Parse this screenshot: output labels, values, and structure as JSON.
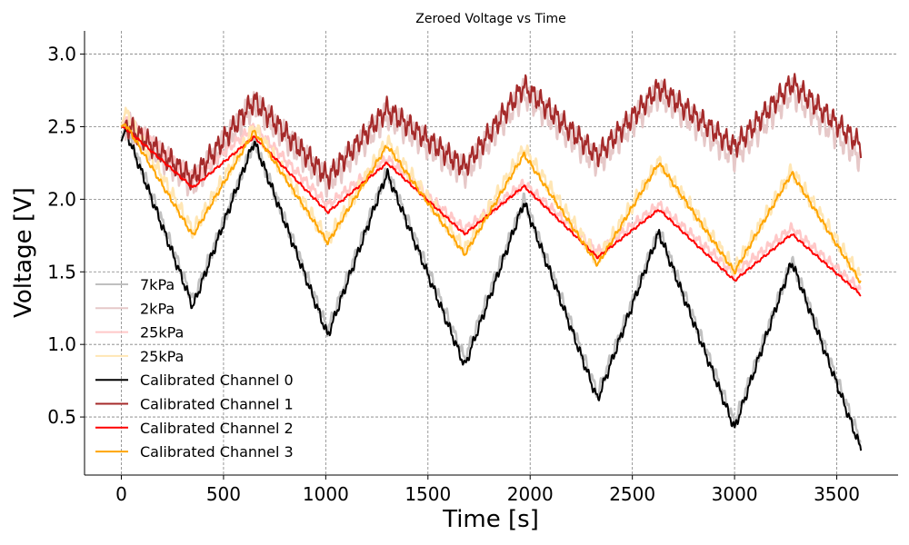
{
  "chart_data": {
    "type": "line",
    "title": "Zeroed Voltage vs Time",
    "xlabel": "Time [s]",
    "ylabel": "Voltage [V]",
    "xlim": [
      -180,
      3800
    ],
    "ylim": [
      0.1,
      3.16
    ],
    "xticks": [
      0,
      500,
      1000,
      1500,
      2000,
      2500,
      3000,
      3500
    ],
    "xtick_labels": [
      "0",
      "500",
      "1000",
      "1500",
      "2000",
      "2500",
      "3000",
      "3500"
    ],
    "yticks": [
      0.5,
      1.0,
      1.5,
      2.0,
      2.5,
      3.0
    ],
    "ytick_labels": [
      "0.5",
      "1.0",
      "1.5",
      "2.0",
      "2.5",
      "3.0"
    ],
    "grid": true,
    "legend_position": "lower-left",
    "series": [
      {
        "name": "7kPa",
        "color": "#c0c0c0",
        "width": 2.5,
        "x": [
          0,
          20,
          350,
          650,
          1010,
          1300,
          1680,
          1970,
          2330,
          2630,
          3000,
          3280,
          3620
        ],
        "y": [
          2.42,
          2.5,
          1.3,
          2.4,
          1.1,
          2.2,
          0.9,
          2.0,
          0.66,
          1.79,
          0.46,
          1.58,
          0.32
        ],
        "osc": 0.05
      },
      {
        "name": "2kPa",
        "color": "#e6c8c8",
        "width": 2.5,
        "x": [
          0,
          20,
          350,
          650,
          1010,
          1300,
          1680,
          1970,
          2330,
          2630,
          3000,
          3280,
          3620
        ],
        "y": [
          2.5,
          2.52,
          2.1,
          2.66,
          2.11,
          2.58,
          2.18,
          2.73,
          2.25,
          2.73,
          2.29,
          2.74,
          2.28
        ],
        "osc": 0.11
      },
      {
        "name": "25kPa",
        "color": "#ffc8c8",
        "width": 2.5,
        "x": [
          0,
          20,
          350,
          650,
          1010,
          1300,
          1680,
          1970,
          2330,
          2630,
          3000,
          3280,
          3620
        ],
        "y": [
          2.5,
          2.56,
          2.15,
          2.5,
          1.96,
          2.28,
          1.79,
          2.11,
          1.64,
          1.96,
          1.49,
          1.8,
          1.37
        ],
        "osc": 0.04
      },
      {
        "name": "25kPa",
        "color": "#ffe6b4",
        "width": 2.5,
        "x": [
          0,
          20,
          350,
          650,
          1010,
          1300,
          1680,
          1970,
          2330,
          2630,
          3000,
          3280,
          3620
        ],
        "y": [
          2.5,
          2.6,
          1.78,
          2.5,
          1.72,
          2.4,
          1.65,
          2.35,
          1.58,
          2.26,
          1.52,
          2.2,
          1.45
        ],
        "osc": 0.06
      },
      {
        "name": "Calibrated Channel 0",
        "color": "#000000",
        "width": 2,
        "x": [
          0,
          20,
          350,
          650,
          1010,
          1300,
          1680,
          1970,
          2330,
          2630,
          3000,
          3280,
          3620
        ],
        "y": [
          2.4,
          2.48,
          1.26,
          2.4,
          1.06,
          2.18,
          0.85,
          1.98,
          0.62,
          1.77,
          0.42,
          1.57,
          0.27
        ],
        "osc": 0.04
      },
      {
        "name": "Calibrated Channel 1",
        "color": "#a52a2a",
        "width": 2,
        "x": [
          0,
          20,
          350,
          650,
          1010,
          1300,
          1680,
          1970,
          2330,
          2630,
          3000,
          3280,
          3620
        ],
        "y": [
          2.5,
          2.52,
          2.14,
          2.68,
          2.15,
          2.62,
          2.22,
          2.78,
          2.3,
          2.77,
          2.36,
          2.8,
          2.37
        ],
        "osc": 0.09
      },
      {
        "name": "Calibrated Channel 2",
        "color": "#ff0000",
        "width": 2,
        "x": [
          0,
          20,
          350,
          650,
          1010,
          1300,
          1680,
          1970,
          2330,
          2630,
          3000,
          3280,
          3620
        ],
        "y": [
          2.5,
          2.49,
          2.08,
          2.43,
          1.91,
          2.25,
          1.76,
          2.09,
          1.6,
          1.93,
          1.44,
          1.76,
          1.34
        ],
        "osc": 0.01
      },
      {
        "name": "Calibrated Channel 3",
        "color": "#ffa500",
        "width": 2,
        "x": [
          0,
          20,
          350,
          650,
          1010,
          1300,
          1680,
          1970,
          2330,
          2630,
          3000,
          3280,
          3620
        ],
        "y": [
          2.5,
          2.52,
          1.75,
          2.47,
          1.7,
          2.37,
          1.62,
          2.31,
          1.55,
          2.25,
          1.5,
          2.18,
          1.42
        ],
        "osc": 0.02
      }
    ]
  }
}
